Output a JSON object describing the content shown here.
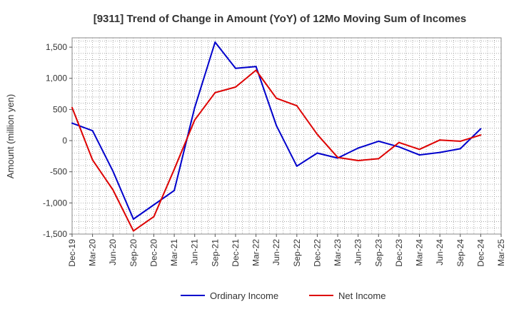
{
  "chart_data": {
    "type": "line",
    "title": "[9311]  Trend of Change in Amount (YoY) of 12Mo Moving Sum of Incomes",
    "xlabel": "",
    "ylabel": "Amount (million yen)",
    "ylim": [
      -1500,
      1650
    ],
    "yticks": [
      -1500,
      -1000,
      -500,
      0,
      500,
      1000,
      1500
    ],
    "ytick_labels": [
      "-1,500",
      "-1,000",
      "-500",
      "0",
      "500",
      "1,000",
      "1,500"
    ],
    "categories": [
      "Dec-19",
      "Mar-20",
      "Jun-20",
      "Sep-20",
      "Dec-20",
      "Mar-21",
      "Jun-21",
      "Sep-21",
      "Dec-21",
      "Mar-22",
      "Jun-22",
      "Sep-22",
      "Dec-22",
      "Mar-23",
      "Jun-23",
      "Sep-23",
      "Dec-23",
      "Mar-24",
      "Jun-24",
      "Sep-24",
      "Dec-24",
      "Mar-25"
    ],
    "grid": true,
    "legend_position": "bottom",
    "series": [
      {
        "name": "Ordinary Income",
        "color": "#0000cc",
        "values": [
          280,
          160,
          -490,
          -1260,
          -1030,
          -800,
          530,
          1580,
          1160,
          1190,
          240,
          -410,
          -200,
          -280,
          -120,
          -10,
          -100,
          -230,
          -190,
          -130,
          190,
          null
        ]
      },
      {
        "name": "Net Income",
        "color": "#dd0000",
        "values": [
          530,
          -310,
          -790,
          -1450,
          -1220,
          -460,
          330,
          770,
          860,
          1130,
          680,
          560,
          100,
          -270,
          -320,
          -290,
          -30,
          -140,
          10,
          -10,
          90,
          null
        ]
      }
    ]
  }
}
